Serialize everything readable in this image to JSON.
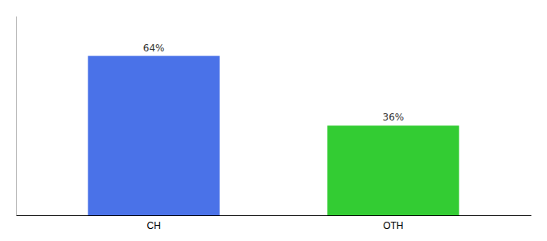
{
  "chart_data": {
    "type": "bar",
    "categories": [
      "CH",
      "OTH"
    ],
    "values": [
      64,
      36
    ],
    "colors": [
      "#4a72e8",
      "#33cc33"
    ],
    "data_labels": true,
    "value_labels": [
      "64%",
      "36%"
    ],
    "ylim": [
      0,
      80
    ],
    "tick_labels": "x"
  }
}
